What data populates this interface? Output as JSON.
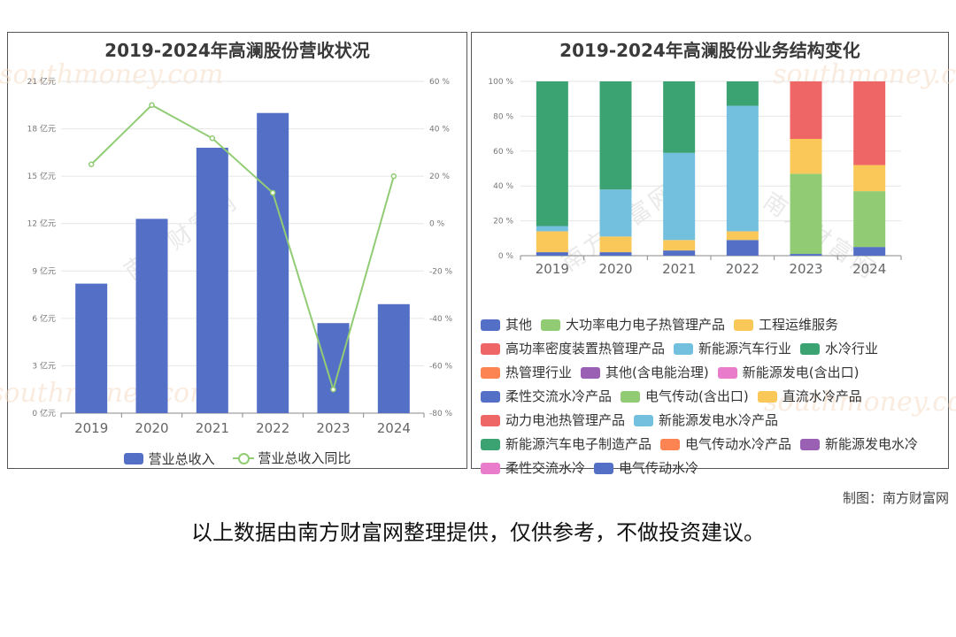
{
  "left_chart": {
    "title": "2019-2024年高澜股份营收状况",
    "legend": {
      "bar": "营业总收入",
      "line": "营业总收入同比"
    },
    "colors": {
      "bar": "#5470c6",
      "line": "#91cc75"
    },
    "chart_data": {
      "type": "bar",
      "categories": [
        "2019",
        "2020",
        "2021",
        "2022",
        "2023",
        "2024"
      ],
      "series": [
        {
          "name": "营业总收入",
          "type": "bar",
          "axis": "left",
          "values": [
            8.2,
            12.3,
            16.8,
            19.0,
            5.7,
            6.9
          ]
        },
        {
          "name": "营业总收入同比",
          "type": "line",
          "axis": "right",
          "values": [
            25,
            50,
            36,
            13,
            -70,
            20
          ]
        }
      ],
      "y_left": {
        "ticks": [
          "0 亿元",
          "3 亿元",
          "6 亿元",
          "9 亿元",
          "12 亿元",
          "15 亿元",
          "18 亿元",
          "21 亿元"
        ],
        "ylim": [
          0,
          21
        ]
      },
      "y_right": {
        "ticks": [
          "-80 %",
          "-60 %",
          "-40 %",
          "-20 %",
          "0 %",
          "20 %",
          "40 %",
          "60 %"
        ],
        "ylim": [
          -80,
          60
        ]
      },
      "legend_position": "bottom"
    }
  },
  "right_chart": {
    "title": "2019-2024年高澜股份业务结构变化",
    "chart_data": {
      "type": "bar",
      "stacked": true,
      "categories": [
        "2019",
        "2020",
        "2021",
        "2022",
        "2023",
        "2024"
      ],
      "y_ticks": [
        "0 %",
        "20 %",
        "40 %",
        "60 %",
        "80 %",
        "100 %"
      ],
      "ylim": [
        0,
        100
      ],
      "series": [
        {
          "name": "其他",
          "color": "#5470c6",
          "values": [
            2,
            2,
            3,
            9,
            1,
            5
          ]
        },
        {
          "name": "大功率电力电子热管理产品",
          "color": "#91cc75",
          "values": [
            0,
            0,
            0,
            0,
            0,
            0
          ]
        },
        {
          "name": "工程运维服务",
          "color": "#fac858",
          "values": [
            12,
            9,
            6,
            5,
            0,
            0
          ]
        },
        {
          "name": "高功率密度装置热管理产品",
          "color": "#ee6666",
          "values": [
            0,
            0,
            0,
            0,
            0,
            0
          ]
        },
        {
          "name": "新能源汽车行业",
          "color": "#73c0de",
          "values": [
            3,
            27,
            50,
            72,
            0,
            0
          ]
        },
        {
          "name": "水冷行业",
          "color": "#3ba272",
          "values": [
            83,
            62,
            41,
            14,
            0,
            0
          ]
        },
        {
          "name": "热管理行业",
          "color": "#fc8452",
          "values": [
            0,
            0,
            0,
            0,
            0,
            0
          ]
        },
        {
          "name": "其他(含电能治理)",
          "color": "#9a60b4",
          "values": [
            0,
            0,
            0,
            0,
            0,
            0
          ]
        },
        {
          "name": "新能源发电(含出口)",
          "color": "#ea7ccc",
          "values": [
            0,
            0,
            0,
            0,
            0,
            0
          ]
        },
        {
          "name": "柔性交流水冷产品",
          "color": "#5470c6",
          "values": [
            0,
            0,
            0,
            0,
            0,
            0
          ]
        },
        {
          "name": "电气传动(含出口)",
          "color": "#91cc75",
          "values": [
            0,
            0,
            0,
            0,
            46,
            32
          ]
        },
        {
          "name": "直流水冷产品",
          "color": "#fac858",
          "values": [
            0,
            0,
            0,
            0,
            20,
            15
          ]
        },
        {
          "name": "动力电池热管理产品",
          "color": "#ee6666",
          "values": [
            0,
            0,
            0,
            0,
            33,
            48
          ]
        },
        {
          "name": "新能源发电水冷产品",
          "color": "#73c0de",
          "values": [
            0,
            0,
            0,
            0,
            0,
            0
          ]
        },
        {
          "name": "新能源汽车电子制造产品",
          "color": "#3ba272",
          "values": [
            0,
            0,
            0,
            0,
            0,
            0
          ]
        },
        {
          "name": "电气传动水冷产品",
          "color": "#fc8452",
          "values": [
            0,
            0,
            0,
            0,
            0,
            0
          ]
        },
        {
          "name": "新能源发电水冷",
          "color": "#9a60b4",
          "values": [
            0,
            0,
            0,
            0,
            0,
            0
          ]
        },
        {
          "name": "柔性交流水冷",
          "color": "#ea7ccc",
          "values": [
            0,
            0,
            0,
            0,
            0,
            0
          ]
        },
        {
          "name": "电气传动水冷",
          "color": "#5470c6",
          "values": [
            0,
            0,
            0,
            0,
            0,
            0
          ]
        }
      ],
      "legend_position": "bottom"
    }
  },
  "watermark": {
    "text": "southmoney.com",
    "cn": "南方财富网"
  },
  "credit": "制图：南方财富网",
  "disclaimer": "以上数据由南方财富网整理提供，仅供参考，不做投资建议。"
}
